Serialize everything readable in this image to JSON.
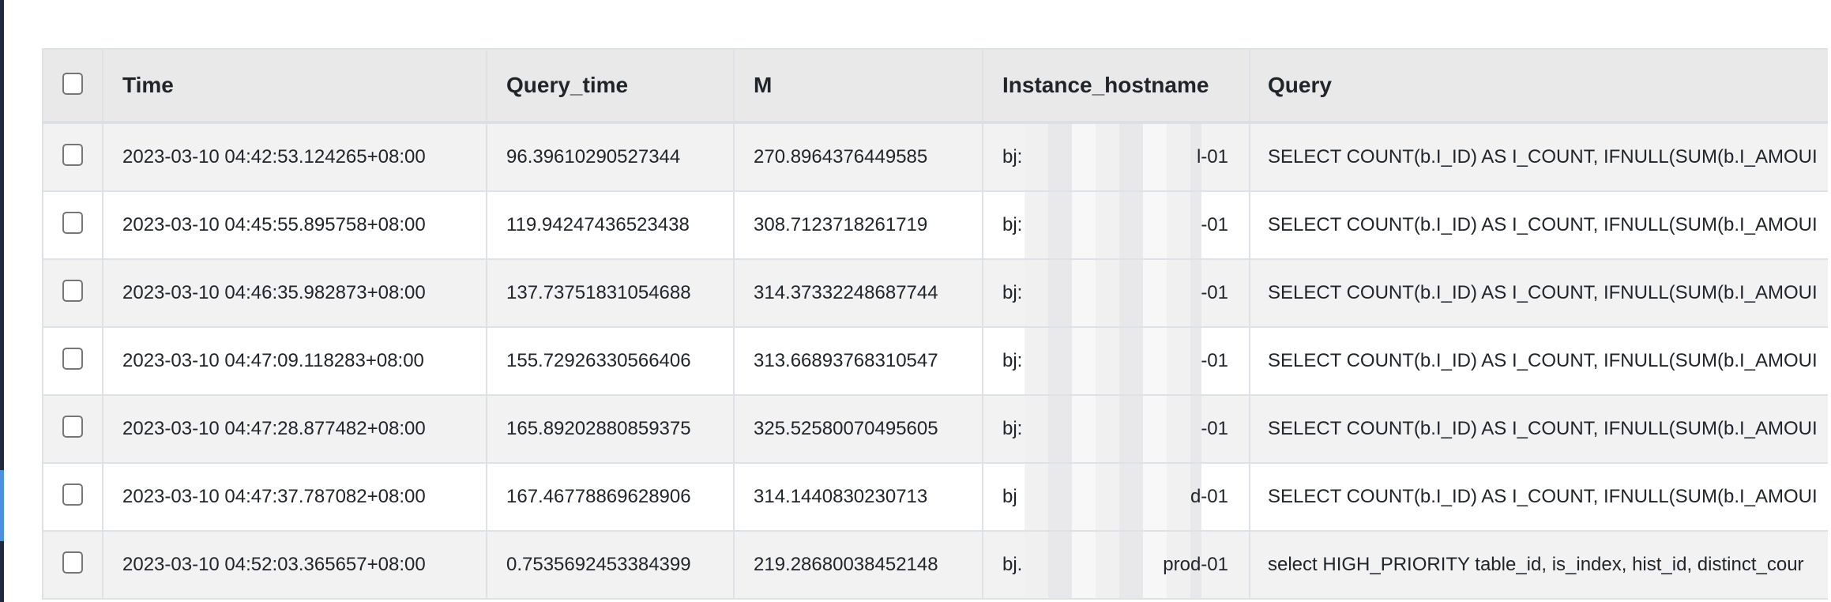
{
  "table": {
    "columns": [
      "Time",
      "Query_time",
      "M",
      "Instance_hostname",
      "Query"
    ],
    "rows": [
      {
        "time": "2023-03-10 04:42:53.124265+08:00",
        "query_time": "96.39610290527344",
        "m": "270.8964376449585",
        "host_prefix": "bj:",
        "host_suffix": "l-01",
        "query": "SELECT COUNT(b.I_ID) AS I_COUNT,  IFNULL(SUM(b.I_AMOUI"
      },
      {
        "time": "2023-03-10 04:45:55.895758+08:00",
        "query_time": "119.94247436523438",
        "m": "308.7123718261719",
        "host_prefix": "bj:",
        "host_suffix": "-01",
        "query": "SELECT COUNT(b.I_ID) AS I_COUNT,  IFNULL(SUM(b.I_AMOUI"
      },
      {
        "time": "2023-03-10 04:46:35.982873+08:00",
        "query_time": "137.73751831054688",
        "m": "314.37332248687744",
        "host_prefix": "bj:",
        "host_suffix": "-01",
        "query": "SELECT COUNT(b.I_ID) AS I_COUNT,  IFNULL(SUM(b.I_AMOUI"
      },
      {
        "time": "2023-03-10 04:47:09.118283+08:00",
        "query_time": "155.72926330566406",
        "m": "313.66893768310547",
        "host_prefix": "bj:",
        "host_suffix": "-01",
        "query": "SELECT COUNT(b.I_ID) AS I_COUNT,  IFNULL(SUM(b.I_AMOUI"
      },
      {
        "time": "2023-03-10 04:47:28.877482+08:00",
        "query_time": "165.89202880859375",
        "m": "325.52580070495605",
        "host_prefix": "bj:",
        "host_suffix": "-01",
        "query": "SELECT COUNT(b.I_ID) AS I_COUNT,  IFNULL(SUM(b.I_AMOUI"
      },
      {
        "time": "2023-03-10 04:47:37.787082+08:00",
        "query_time": "167.46778869628906",
        "m": "314.1440830230713",
        "host_prefix": "bj",
        "host_suffix": "d-01",
        "query": "SELECT COUNT(b.I_ID) AS I_COUNT,  IFNULL(SUM(b.I_AMOUI"
      },
      {
        "time": "2023-03-10 04:52:03.365657+08:00",
        "query_time": "0.7535692453384399",
        "m": "219.28680038452148",
        "host_prefix": "bj.",
        "host_suffix": "prod-01",
        "query": "select HIGH_PRIORITY table_id, is_index, hist_id, distinct_cour"
      }
    ]
  }
}
